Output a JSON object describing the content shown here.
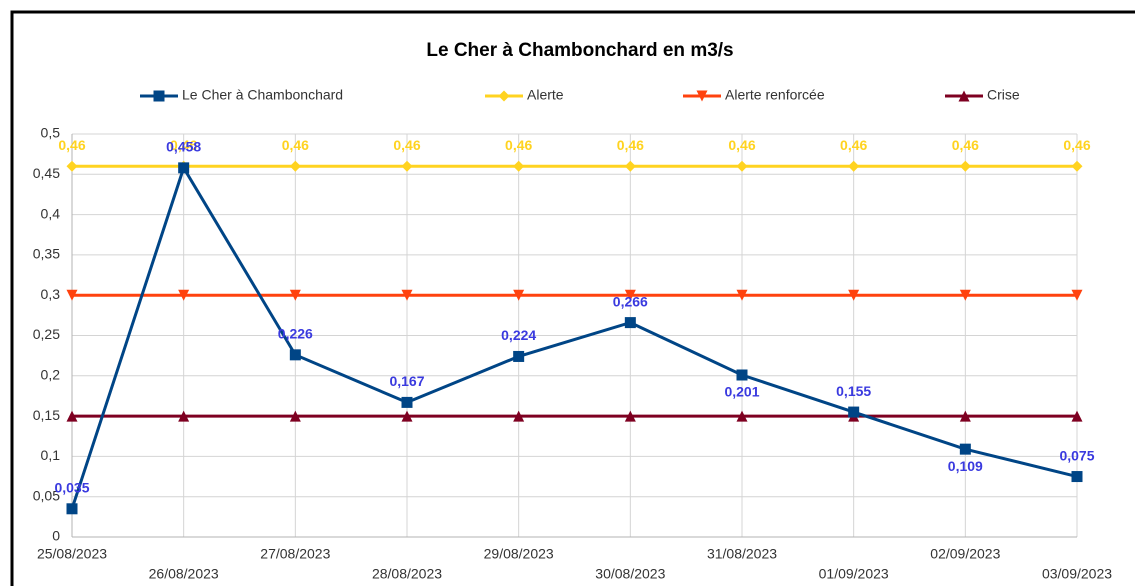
{
  "chart_data": {
    "type": "line",
    "title": "Le Cher à Chambonchard en m3/s",
    "categories": [
      "25/08/2023",
      "26/08/2023",
      "27/08/2023",
      "28/08/2023",
      "29/08/2023",
      "30/08/2023",
      "31/08/2023",
      "01/09/2023",
      "02/09/2023",
      "03/09/2023"
    ],
    "series": [
      {
        "name": "Le Cher à Chambonchard",
        "color": "#004586",
        "marker": "square",
        "values": [
          0.035,
          0.458,
          0.226,
          0.167,
          0.224,
          0.266,
          0.201,
          0.155,
          0.109,
          0.075
        ],
        "value_labels": [
          "0,035",
          "0,458",
          "0,226",
          "0,167",
          "0,224",
          "0,266",
          "0,201",
          "0,155",
          "0,109",
          "0,075"
        ]
      },
      {
        "name": "Alerte",
        "color": "#ffd320",
        "marker": "diamond",
        "values": [
          0.46,
          0.46,
          0.46,
          0.46,
          0.46,
          0.46,
          0.46,
          0.46,
          0.46,
          0.46
        ],
        "value_labels": [
          "0,46",
          "0,46",
          "0,46",
          "0,46",
          "0,46",
          "0,46",
          "0,46",
          "0,46",
          "0,46",
          "0,46"
        ]
      },
      {
        "name": "Alerte renforcée",
        "color": "#ff420e",
        "marker": "triangle-down",
        "values": [
          0.3,
          0.3,
          0.3,
          0.3,
          0.3,
          0.3,
          0.3,
          0.3,
          0.3,
          0.3
        ]
      },
      {
        "name": "Crise",
        "color": "#7e0021",
        "marker": "triangle-up",
        "values": [
          0.15,
          0.15,
          0.15,
          0.15,
          0.15,
          0.15,
          0.15,
          0.15,
          0.15,
          0.15
        ]
      }
    ],
    "ylim": [
      0,
      0.5
    ],
    "yticks": [
      0,
      {
        "value": 0.05,
        "label": "0,05"
      },
      {
        "value": 0.1,
        "label": "0,1"
      },
      {
        "value": 0.15,
        "label": "0,15"
      },
      {
        "value": 0.2,
        "label": "0,2"
      },
      {
        "value": 0.25,
        "label": "0,25"
      },
      {
        "value": 0.3,
        "label": "0,3"
      },
      {
        "value": 0.35,
        "label": "0,35"
      },
      {
        "value": 0.4,
        "label": "0,4"
      },
      {
        "value": 0.45,
        "label": "0,45"
      },
      {
        "value": 0.5,
        "label": "0,5"
      }
    ],
    "grid": true,
    "legend": "top"
  }
}
